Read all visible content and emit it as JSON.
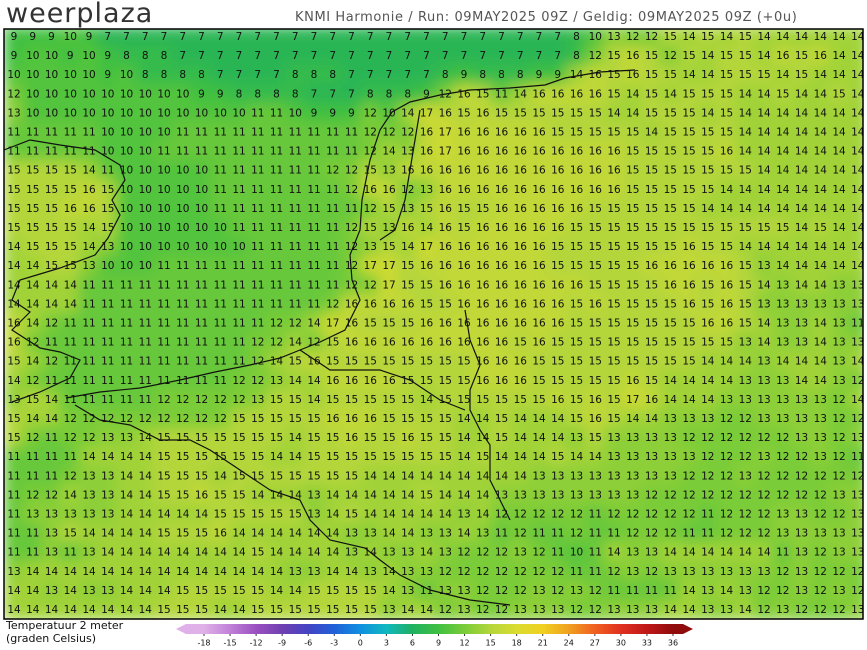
{
  "header": {
    "logo": "weerplaza",
    "info": "KNMI Harmonie / Run: 09MAY2025 09Z / Geldig: 09MAY2025 09Z (+0u)"
  },
  "map": {
    "values": [
      [
        9,
        9,
        9,
        10,
        9,
        7,
        7,
        7,
        7,
        7,
        7,
        7,
        7,
        7,
        7,
        7,
        7,
        7,
        7,
        7,
        7,
        7,
        7,
        7,
        7,
        7,
        7,
        7,
        7,
        7,
        8,
        10,
        13,
        12,
        12,
        15,
        14,
        15,
        14,
        15,
        14,
        14,
        14,
        14,
        14,
        14
      ],
      [
        9,
        10,
        10,
        9,
        10,
        9,
        8,
        8,
        8,
        7,
        7,
        7,
        7,
        7,
        7,
        7,
        7,
        7,
        7,
        7,
        7,
        7,
        7,
        7,
        7,
        7,
        7,
        7,
        7,
        7,
        8,
        12,
        15,
        16,
        15,
        12,
        15,
        14,
        15,
        15,
        14,
        16,
        15,
        16,
        14,
        14
      ],
      [
        10,
        10,
        10,
        10,
        10,
        9,
        10,
        8,
        8,
        8,
        8,
        7,
        7,
        7,
        7,
        8,
        8,
        8,
        7,
        7,
        7,
        7,
        7,
        8,
        9,
        8,
        8,
        8,
        9,
        9,
        14,
        16,
        15,
        16,
        15,
        15,
        14,
        14,
        15,
        15,
        15,
        14,
        15,
        14,
        14,
        14
      ],
      [
        12,
        10,
        10,
        10,
        10,
        10,
        10,
        10,
        10,
        10,
        9,
        9,
        8,
        8,
        8,
        8,
        7,
        7,
        7,
        8,
        8,
        8,
        9,
        12,
        16,
        15,
        11,
        14,
        16,
        16,
        16,
        16,
        15,
        14,
        15,
        14,
        15,
        15,
        15,
        14,
        14,
        15,
        14,
        14,
        15,
        14
      ],
      [
        13,
        10,
        10,
        10,
        10,
        10,
        10,
        10,
        10,
        10,
        10,
        10,
        10,
        11,
        11,
        10,
        9,
        9,
        9,
        12,
        10,
        14,
        17,
        16,
        15,
        16,
        15,
        15,
        15,
        15,
        15,
        15,
        14,
        14,
        15,
        15,
        15,
        14,
        15,
        14,
        14,
        14,
        14,
        14,
        14,
        14
      ],
      [
        11,
        11,
        11,
        11,
        11,
        10,
        10,
        10,
        10,
        11,
        11,
        11,
        11,
        11,
        11,
        11,
        11,
        11,
        11,
        12,
        12,
        12,
        16,
        17,
        16,
        16,
        16,
        16,
        16,
        15,
        15,
        15,
        15,
        15,
        14,
        15,
        15,
        15,
        15,
        14,
        14,
        14,
        14,
        14,
        14,
        14
      ],
      [
        11,
        11,
        11,
        11,
        11,
        10,
        10,
        10,
        11,
        11,
        11,
        11,
        11,
        11,
        11,
        11,
        11,
        11,
        11,
        12,
        14,
        13,
        16,
        17,
        16,
        16,
        16,
        16,
        16,
        16,
        16,
        16,
        16,
        15,
        15,
        15,
        15,
        15,
        16,
        14,
        14,
        14,
        14,
        14,
        14,
        14
      ],
      [
        15,
        15,
        15,
        15,
        14,
        11,
        10,
        10,
        10,
        10,
        10,
        11,
        11,
        11,
        11,
        11,
        11,
        12,
        12,
        15,
        13,
        16,
        16,
        16,
        16,
        16,
        16,
        16,
        16,
        16,
        16,
        16,
        16,
        15,
        15,
        15,
        15,
        15,
        15,
        15,
        14,
        14,
        14,
        14,
        14,
        14
      ],
      [
        15,
        15,
        15,
        15,
        16,
        15,
        10,
        10,
        10,
        10,
        10,
        11,
        11,
        11,
        11,
        11,
        11,
        11,
        12,
        16,
        16,
        12,
        13,
        16,
        16,
        16,
        16,
        16,
        16,
        16,
        16,
        16,
        16,
        15,
        15,
        15,
        15,
        15,
        14,
        14,
        14,
        14,
        14,
        14,
        14,
        14
      ],
      [
        15,
        15,
        15,
        16,
        16,
        15,
        10,
        10,
        10,
        10,
        10,
        11,
        11,
        11,
        11,
        11,
        11,
        11,
        11,
        12,
        15,
        13,
        15,
        16,
        15,
        15,
        16,
        16,
        16,
        16,
        16,
        15,
        15,
        15,
        15,
        15,
        15,
        14,
        14,
        14,
        14,
        14,
        14,
        14,
        14,
        14
      ],
      [
        15,
        15,
        15,
        15,
        14,
        15,
        10,
        10,
        10,
        10,
        10,
        10,
        11,
        11,
        11,
        11,
        11,
        11,
        12,
        15,
        13,
        16,
        14,
        16,
        15,
        16,
        16,
        16,
        16,
        16,
        15,
        15,
        15,
        15,
        15,
        15,
        15,
        15,
        15,
        15,
        15,
        15,
        14,
        15,
        14,
        14
      ],
      [
        14,
        15,
        15,
        15,
        14,
        13,
        10,
        10,
        10,
        10,
        10,
        10,
        10,
        11,
        11,
        11,
        11,
        11,
        12,
        13,
        15,
        14,
        17,
        16,
        16,
        16,
        16,
        16,
        16,
        15,
        15,
        15,
        15,
        15,
        15,
        15,
        16,
        15,
        15,
        14,
        14,
        14,
        14,
        14,
        14,
        14
      ],
      [
        14,
        14,
        15,
        15,
        13,
        10,
        10,
        10,
        11,
        11,
        11,
        11,
        11,
        11,
        11,
        11,
        11,
        11,
        12,
        17,
        17,
        15,
        16,
        16,
        16,
        16,
        16,
        16,
        16,
        15,
        15,
        15,
        15,
        15,
        16,
        16,
        16,
        16,
        16,
        15,
        13,
        14,
        14,
        14,
        14,
        14
      ],
      [
        14,
        14,
        14,
        14,
        11,
        11,
        11,
        11,
        11,
        11,
        11,
        11,
        11,
        11,
        11,
        11,
        11,
        11,
        12,
        12,
        17,
        15,
        15,
        16,
        16,
        16,
        16,
        16,
        16,
        16,
        16,
        15,
        15,
        15,
        15,
        16,
        16,
        15,
        16,
        15,
        14,
        13,
        14,
        14,
        13,
        13
      ],
      [
        14,
        14,
        14,
        14,
        11,
        11,
        11,
        11,
        11,
        11,
        11,
        11,
        11,
        11,
        11,
        11,
        11,
        12,
        16,
        16,
        16,
        16,
        15,
        15,
        16,
        16,
        16,
        16,
        16,
        16,
        15,
        16,
        15,
        15,
        15,
        15,
        16,
        15,
        16,
        15,
        13,
        13,
        13,
        13,
        13,
        13
      ],
      [
        16,
        14,
        12,
        11,
        11,
        11,
        11,
        11,
        11,
        11,
        11,
        11,
        11,
        11,
        12,
        12,
        14,
        17,
        16,
        15,
        15,
        15,
        16,
        16,
        16,
        16,
        16,
        16,
        16,
        16,
        15,
        15,
        15,
        15,
        15,
        15,
        15,
        16,
        16,
        15,
        14,
        13,
        13,
        14,
        13,
        11
      ],
      [
        16,
        12,
        11,
        11,
        11,
        11,
        11,
        11,
        11,
        11,
        11,
        11,
        11,
        12,
        12,
        14,
        12,
        15,
        16,
        16,
        16,
        16,
        16,
        16,
        16,
        16,
        16,
        15,
        16,
        15,
        15,
        15,
        15,
        15,
        15,
        15,
        15,
        15,
        15,
        13,
        14,
        13,
        13,
        14,
        13,
        13
      ],
      [
        15,
        14,
        12,
        11,
        11,
        11,
        11,
        11,
        11,
        11,
        11,
        11,
        11,
        12,
        14,
        15,
        16,
        15,
        15,
        15,
        15,
        15,
        15,
        15,
        15,
        16,
        16,
        16,
        15,
        15,
        15,
        15,
        15,
        15,
        15,
        15,
        15,
        14,
        14,
        14,
        13,
        14,
        14,
        14,
        13,
        14
      ],
      [
        14,
        12,
        11,
        11,
        11,
        11,
        11,
        11,
        11,
        11,
        11,
        11,
        12,
        12,
        13,
        14,
        14,
        16,
        16,
        16,
        16,
        15,
        15,
        15,
        15,
        16,
        16,
        16,
        15,
        15,
        15,
        15,
        15,
        16,
        15,
        14,
        14,
        14,
        14,
        13,
        13,
        13,
        14,
        14,
        13,
        12
      ],
      [
        13,
        15,
        14,
        11,
        11,
        11,
        11,
        11,
        12,
        12,
        12,
        12,
        12,
        13,
        15,
        15,
        14,
        15,
        15,
        15,
        15,
        15,
        14,
        15,
        15,
        15,
        15,
        15,
        15,
        16,
        15,
        16,
        15,
        17,
        16,
        14,
        14,
        14,
        13,
        13,
        13,
        13,
        13,
        13,
        12,
        14
      ],
      [
        15,
        14,
        14,
        12,
        12,
        12,
        12,
        12,
        12,
        12,
        12,
        12,
        15,
        15,
        15,
        15,
        15,
        16,
        16,
        16,
        15,
        15,
        15,
        15,
        14,
        14,
        15,
        14,
        14,
        14,
        15,
        16,
        15,
        14,
        14,
        13,
        13,
        13,
        12,
        12,
        13,
        13,
        13,
        13,
        12,
        12
      ],
      [
        15,
        12,
        11,
        12,
        12,
        13,
        13,
        14,
        15,
        15,
        15,
        15,
        15,
        15,
        15,
        14,
        15,
        15,
        16,
        15,
        15,
        16,
        15,
        15,
        14,
        14,
        15,
        14,
        14,
        14,
        13,
        15,
        13,
        13,
        13,
        13,
        12,
        12,
        12,
        12,
        12,
        12,
        13,
        13,
        12,
        13
      ],
      [
        11,
        11,
        11,
        11,
        14,
        14,
        14,
        14,
        15,
        15,
        15,
        15,
        15,
        15,
        14,
        14,
        15,
        15,
        15,
        15,
        15,
        15,
        15,
        15,
        14,
        15,
        14,
        14,
        14,
        15,
        14,
        14,
        13,
        13,
        13,
        13,
        13,
        12,
        12,
        12,
        13,
        12,
        12,
        13,
        12,
        11
      ],
      [
        11,
        11,
        11,
        12,
        13,
        13,
        14,
        14,
        15,
        15,
        15,
        14,
        15,
        15,
        15,
        15,
        15,
        15,
        15,
        14,
        14,
        14,
        14,
        14,
        14,
        14,
        14,
        14,
        13,
        13,
        13,
        13,
        13,
        13,
        13,
        13,
        12,
        12,
        12,
        13,
        12,
        12,
        12,
        12,
        12,
        12
      ],
      [
        11,
        12,
        12,
        14,
        13,
        13,
        14,
        14,
        15,
        15,
        16,
        15,
        15,
        14,
        14,
        14,
        13,
        14,
        14,
        14,
        14,
        14,
        15,
        14,
        14,
        14,
        13,
        13,
        13,
        13,
        13,
        13,
        13,
        13,
        12,
        12,
        12,
        12,
        12,
        12,
        12,
        12,
        12,
        12,
        13,
        13
      ],
      [
        11,
        13,
        13,
        13,
        13,
        13,
        14,
        14,
        14,
        14,
        14,
        15,
        15,
        15,
        15,
        15,
        13,
        14,
        15,
        14,
        14,
        14,
        14,
        14,
        13,
        14,
        12,
        12,
        12,
        12,
        12,
        11,
        12,
        12,
        12,
        12,
        12,
        11,
        12,
        12,
        12,
        13,
        13,
        12,
        12,
        13
      ],
      [
        11,
        11,
        13,
        15,
        14,
        14,
        14,
        14,
        15,
        15,
        15,
        16,
        14,
        14,
        14,
        14,
        14,
        14,
        13,
        13,
        14,
        14,
        13,
        13,
        14,
        13,
        11,
        12,
        11,
        11,
        12,
        11,
        11,
        12,
        12,
        12,
        11,
        11,
        12,
        12,
        12,
        13,
        13,
        13,
        13,
        13
      ],
      [
        11,
        11,
        13,
        11,
        13,
        14,
        14,
        14,
        14,
        14,
        14,
        14,
        14,
        15,
        14,
        14,
        14,
        14,
        13,
        14,
        13,
        13,
        14,
        13,
        12,
        12,
        12,
        13,
        12,
        11,
        10,
        11,
        14,
        13,
        13,
        14,
        14,
        14,
        14,
        14,
        14,
        11,
        13,
        12,
        13,
        13
      ],
      [
        13,
        14,
        14,
        14,
        14,
        14,
        14,
        14,
        14,
        14,
        14,
        14,
        14,
        14,
        14,
        13,
        13,
        14,
        14,
        13,
        14,
        13,
        13,
        12,
        12,
        12,
        12,
        12,
        12,
        12,
        11,
        11,
        12,
        13,
        12,
        13,
        13,
        13,
        13,
        13,
        13,
        12,
        13,
        12,
        12,
        12
      ],
      [
        14,
        14,
        13,
        14,
        13,
        13,
        14,
        14,
        14,
        15,
        15,
        15,
        15,
        15,
        14,
        14,
        15,
        15,
        15,
        15,
        14,
        13,
        11,
        13,
        13,
        12,
        12,
        12,
        13,
        12,
        13,
        12,
        11,
        11,
        11,
        11,
        14,
        13,
        14,
        13,
        12,
        12,
        13,
        12,
        13,
        12
      ],
      [
        14,
        14,
        14,
        14,
        14,
        14,
        14,
        14,
        15,
        15,
        15,
        14,
        14,
        15,
        15,
        15,
        15,
        15,
        15,
        15,
        13,
        14,
        14,
        12,
        13,
        12,
        12,
        13,
        13,
        13,
        12,
        12,
        13,
        13,
        13,
        14,
        14,
        13,
        13,
        14,
        12,
        13,
        12,
        12,
        12,
        13
      ]
    ]
  },
  "legend": {
    "title": [
      "Temperatuur 2 meter",
      "(graden Celsius)"
    ],
    "ticks": [
      -18,
      -15,
      -12,
      -9,
      -6,
      -3,
      0,
      3,
      6,
      9,
      12,
      15,
      18,
      21,
      24,
      27,
      30,
      33,
      36
    ],
    "colors": [
      "#e0b0e8",
      "#c080d8",
      "#9a50c0",
      "#7040b0",
      "#4444c4",
      "#2060d8",
      "#1090e0",
      "#10b8c0",
      "#20b060",
      "#40c040",
      "#7acc38",
      "#b4d63a",
      "#dadc30",
      "#f0d020",
      "#f0a020",
      "#f06020",
      "#e03020",
      "#c01818",
      "#900c0c"
    ]
  }
}
